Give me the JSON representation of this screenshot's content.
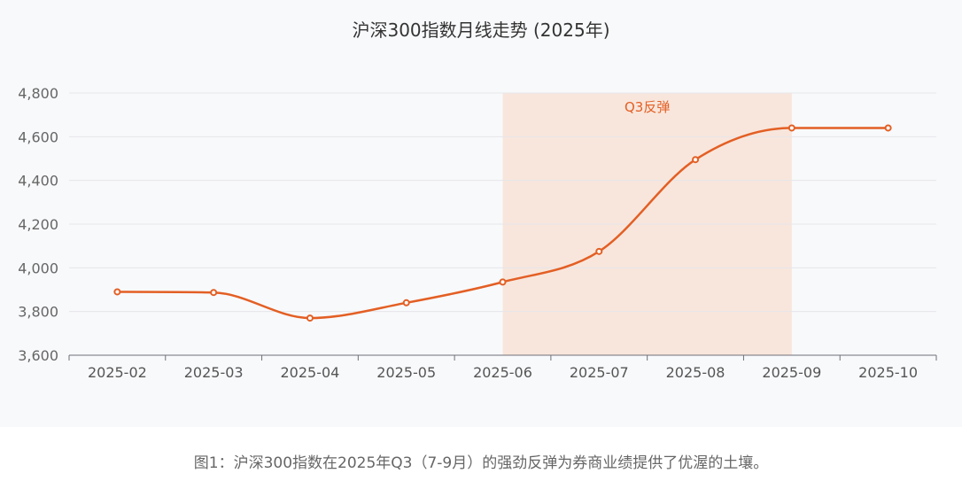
{
  "chart_data": {
    "type": "line",
    "title": "沪深300指数月线走势 (2025年)",
    "categories": [
      "2025-02",
      "2025-03",
      "2025-04",
      "2025-05",
      "2025-06",
      "2025-07",
      "2025-08",
      "2025-09",
      "2025-10"
    ],
    "series": [
      {
        "values": [
          3890,
          3887,
          3770,
          3840,
          3935,
          4075,
          4495,
          4640,
          4640
        ]
      }
    ],
    "ylim": [
      3600,
      4800
    ],
    "yticks": [
      3600,
      3800,
      4000,
      4200,
      4400,
      4600,
      4800
    ],
    "ytick_labels": [
      "3,600",
      "3,800",
      "4,000",
      "4,200",
      "4,400",
      "4,600",
      "4,800"
    ],
    "grid": true,
    "highlight": {
      "label": "Q3反弹",
      "from_category": "2025-06",
      "to_category": "2025-09"
    }
  },
  "colors": {
    "line": "#e35f24",
    "band_fill": "#f8e6dc",
    "band_label": "#e35f24",
    "grid": "#e6e6ea",
    "axis": "#6e7079"
  },
  "caption": "图1：沪深300指数在2025年Q3（7-9月）的强劲反弹为券商业绩提供了优渥的土壤。"
}
